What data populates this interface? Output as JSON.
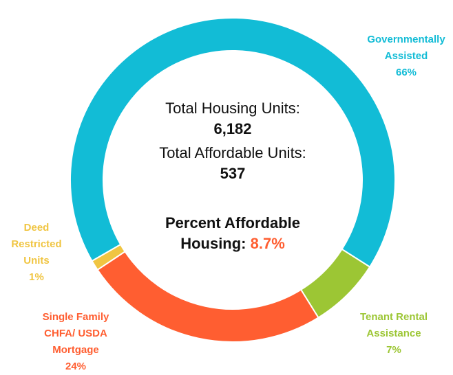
{
  "chart_data": {
    "type": "donut",
    "categories": [
      "Governmentally Assisted",
      "Tenant Rental Assistance",
      "Single Family CHFA/ USDA Mortgage",
      "Deed Restricted Units"
    ],
    "values": [
      66,
      7,
      24,
      1
    ],
    "value_labels": [
      "66%",
      "7%",
      "24%",
      "1%"
    ],
    "colors": [
      "#12bcd6",
      "#9cc634",
      "#ff5e31",
      "#f0c542"
    ],
    "annotations": [
      {
        "text": "Total Housing Units:",
        "value": "6,182"
      },
      {
        "text": "Total Affordable Units:",
        "value": "537"
      },
      {
        "text": "Percent Affordable Housing:",
        "value": "8.7%",
        "color": "#ff5e31"
      }
    ]
  }
}
